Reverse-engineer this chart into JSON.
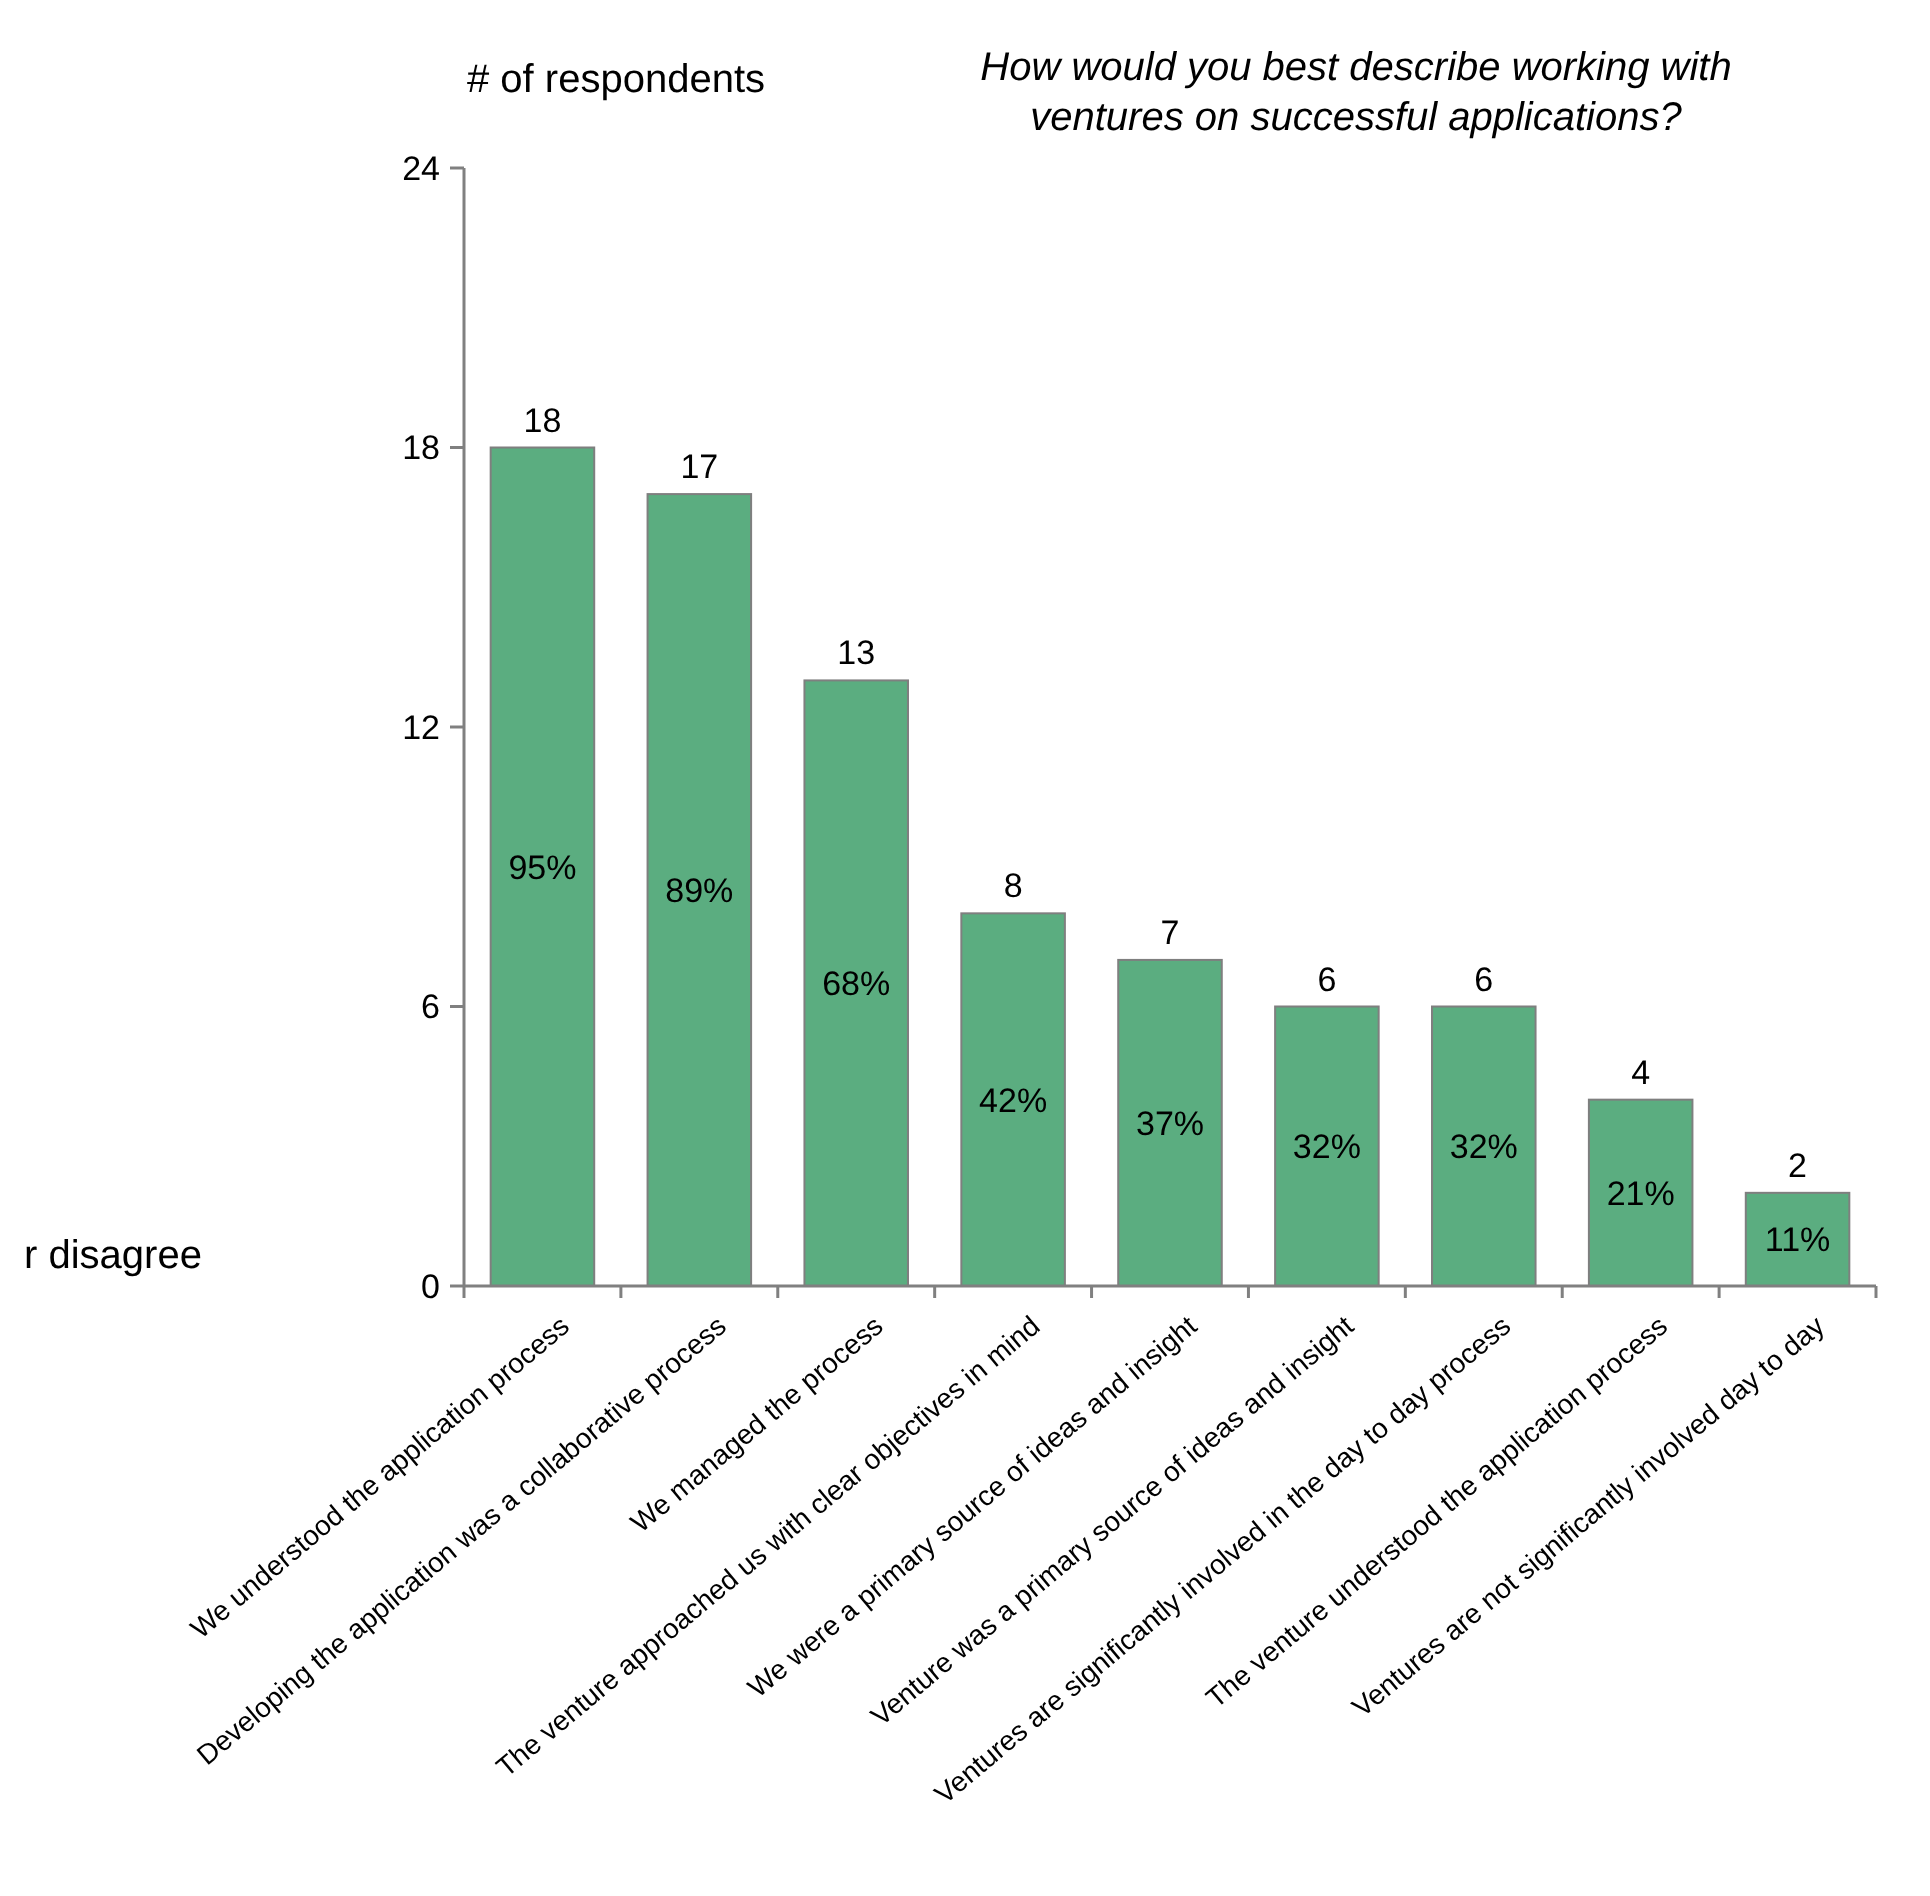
{
  "chart_data": {
    "type": "bar",
    "title": "How would you best describe working with ventures on successful applications?",
    "ylabel": "# of respondents",
    "categories": [
      "We understood the application process",
      "Developing the application was a collaborative process",
      "We managed the process",
      "The venture approached us with clear objectives in mind",
      "We were a primary source of ideas and insight",
      "Venture was a primary source of ideas and insight",
      "Ventures are significantly involved in the day to day process",
      "The venture understood the application process",
      "Ventures are not significantly involved day to day"
    ],
    "values": [
      18,
      17,
      13,
      8,
      7,
      6,
      6,
      4,
      2
    ],
    "color": "#5bad80",
    "ylim": [
      0,
      24
    ],
    "yticks": [
      0,
      6,
      12,
      18,
      24
    ],
    "grid": false,
    "data_labels": true,
    "annotations": [
      "95%",
      "89%",
      "68%",
      "42%",
      "37%",
      "32%",
      "32%",
      "21%",
      "11%",
      "r disagree"
    ]
  }
}
